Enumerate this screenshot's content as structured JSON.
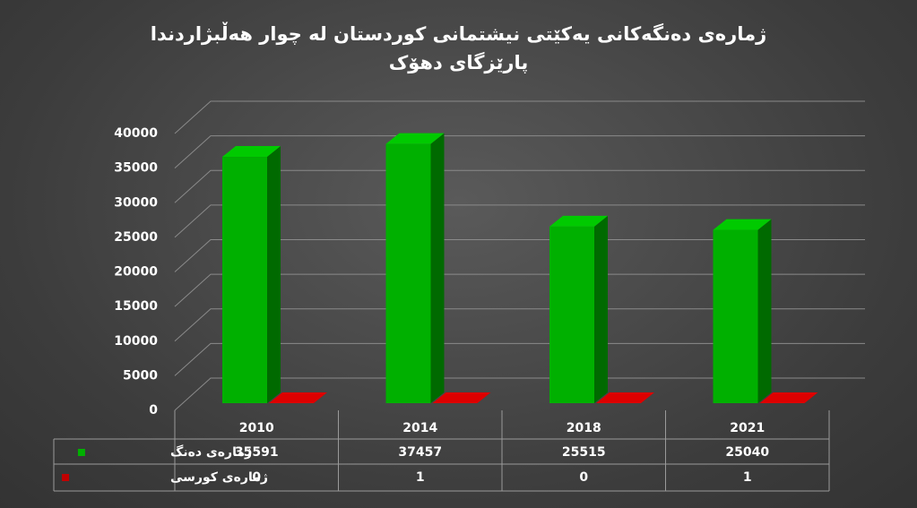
{
  "chart_data": {
    "type": "bar3d",
    "title": "ژمارەی دەنگەکانی یەکێتی نیشتمانی  کوردستان لە چوار هەڵبژاردندا پارێزگای دهۆک",
    "categories": [
      "2010",
      "2014",
      "2018",
      "2021"
    ],
    "series": [
      {
        "name": "ژمارەی دەنگ",
        "color": "#00b000",
        "values": [
          35591,
          37457,
          25515,
          25040
        ]
      },
      {
        "name": "ژمارەی کورسی",
        "color": "#c00000",
        "values": [
          0,
          1,
          0,
          1
        ]
      }
    ],
    "ylim": [
      0,
      40000
    ],
    "yticks": [
      0,
      5000,
      10000,
      15000,
      20000,
      25000,
      30000,
      35000,
      40000
    ],
    "grid": true,
    "data_table": true
  }
}
